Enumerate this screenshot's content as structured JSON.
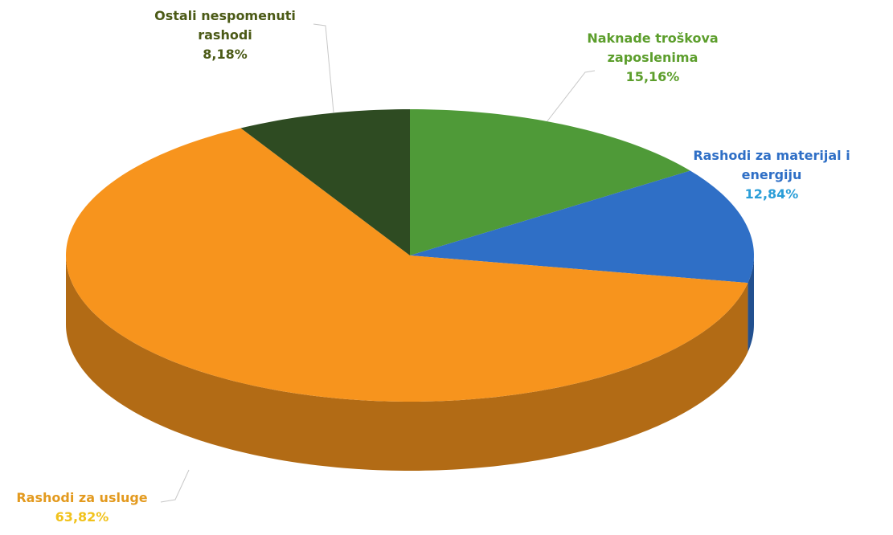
{
  "chart_data": {
    "type": "pie3d",
    "categories": [
      "Naknade troškova zaposlenima",
      "Rashodi za materijal i energiju",
      "Rashodi za usluge",
      "Ostali nespomenuti rashodi"
    ],
    "values": [
      15.16,
      12.84,
      63.82,
      8.18
    ],
    "value_labels": [
      "15,16%",
      "12,84%",
      "63,82%",
      "8,18%"
    ],
    "colors": [
      "#4f9a38",
      "#2f6fc6",
      "#f7941d",
      "#2e4b22"
    ],
    "label_colors": [
      "#5c9e2c",
      "#2f6fc6",
      "#e39a1f",
      "#4b5a16"
    ],
    "value_label_colors": [
      "#5c9e2c",
      "#2a9ed8",
      "#f1c21b",
      "#4b5a16"
    ]
  }
}
